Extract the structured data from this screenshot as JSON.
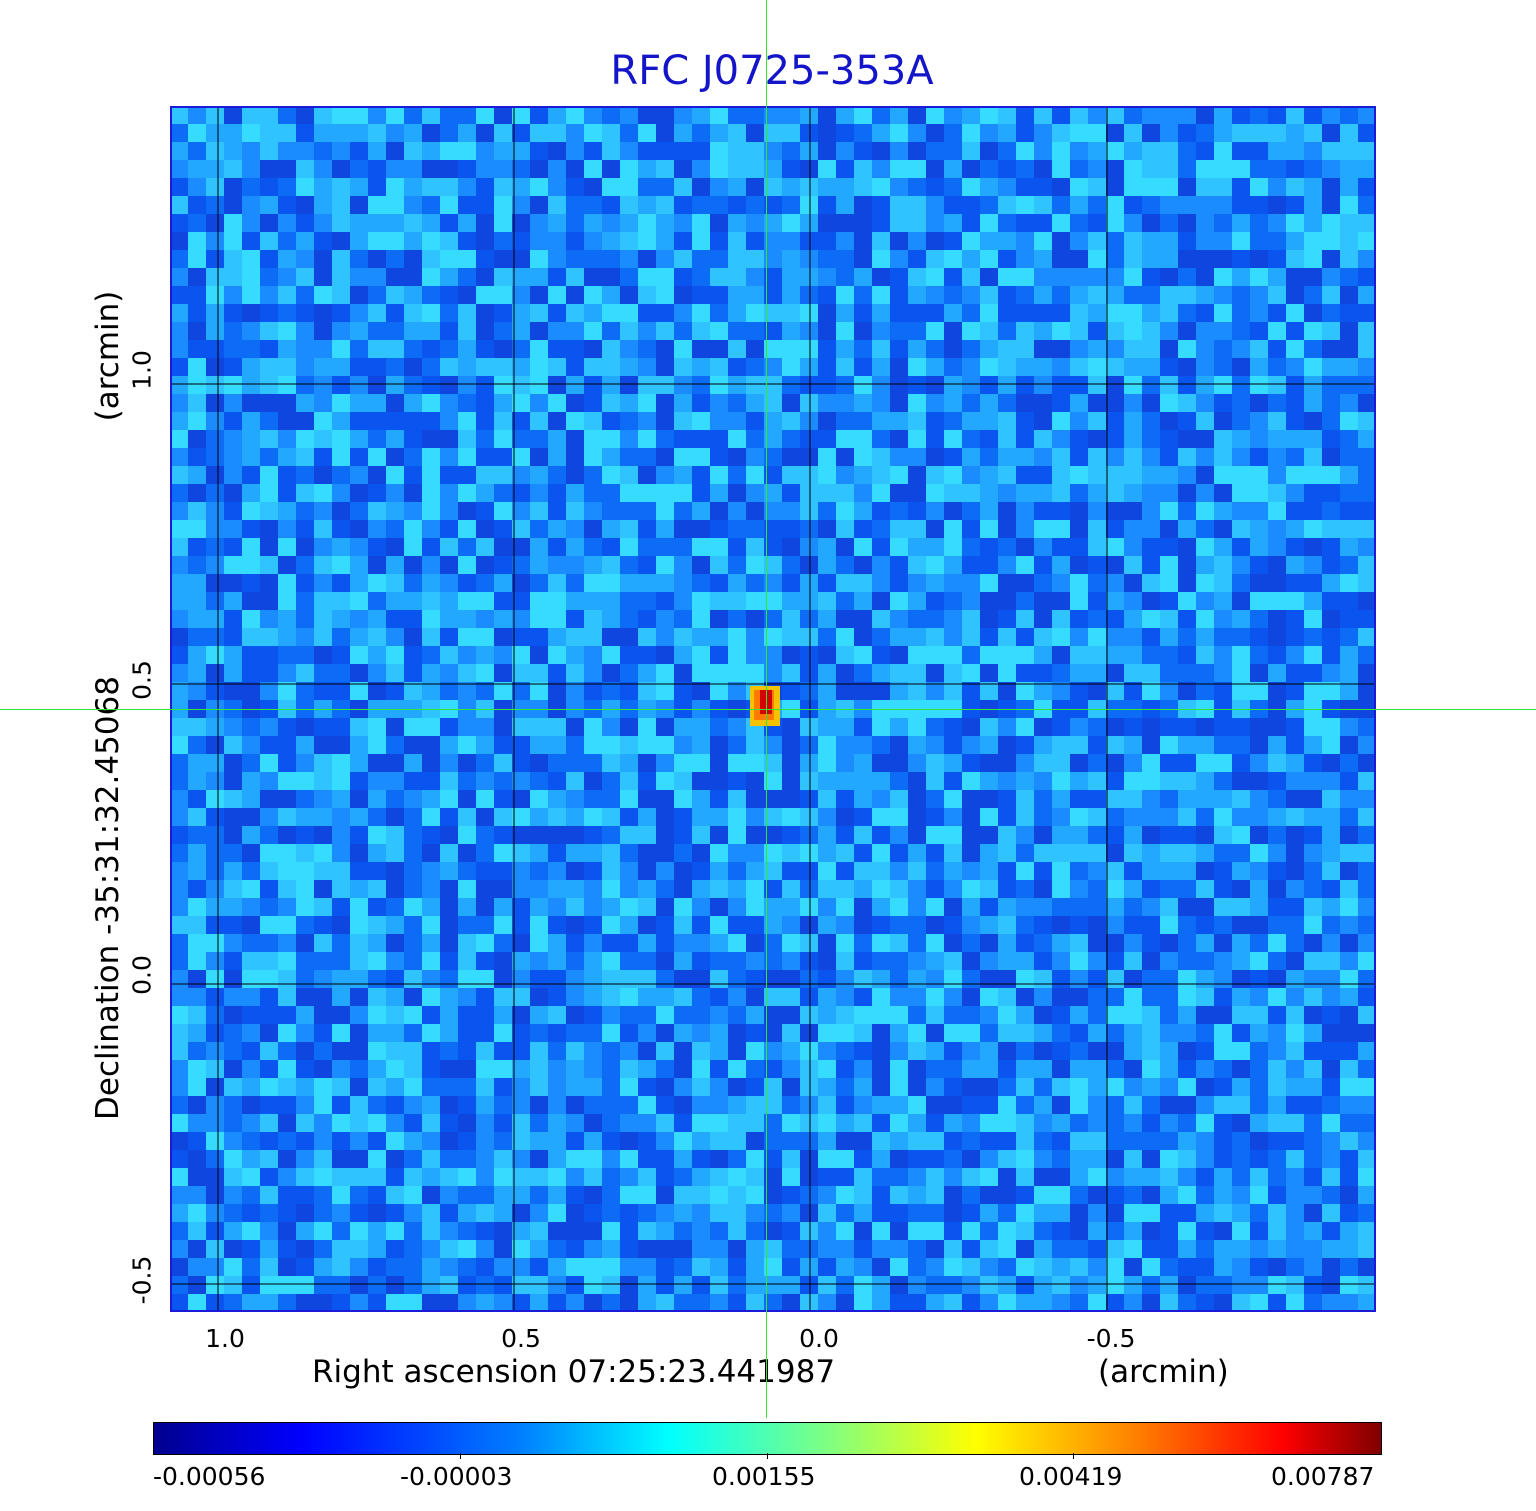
{
  "title": "RFC J0725-353A",
  "axes": {
    "x_label": "Right ascension  07:25:23.441987",
    "x_unit": "(arcmin)",
    "y_label": "Declination  -35:31:32.45068",
    "y_unit": "(arcmin)",
    "x_ticks": [
      "1.0",
      "0.5",
      "0.0",
      "-0.5"
    ],
    "y_ticks": [
      "1.0",
      "0.5",
      "0.0",
      "-0.5"
    ]
  },
  "colorbar": {
    "colormap": "jet",
    "ticks": [
      "-0.00056",
      "-0.00003",
      "0.00155",
      "0.00419",
      "0.00787"
    ]
  },
  "colors": {
    "title": "#1414c8",
    "frame": "#1a1ad8",
    "crosshair": "#33e633",
    "background_noise": "#1f8fff",
    "source_peak": "#e01010"
  }
}
